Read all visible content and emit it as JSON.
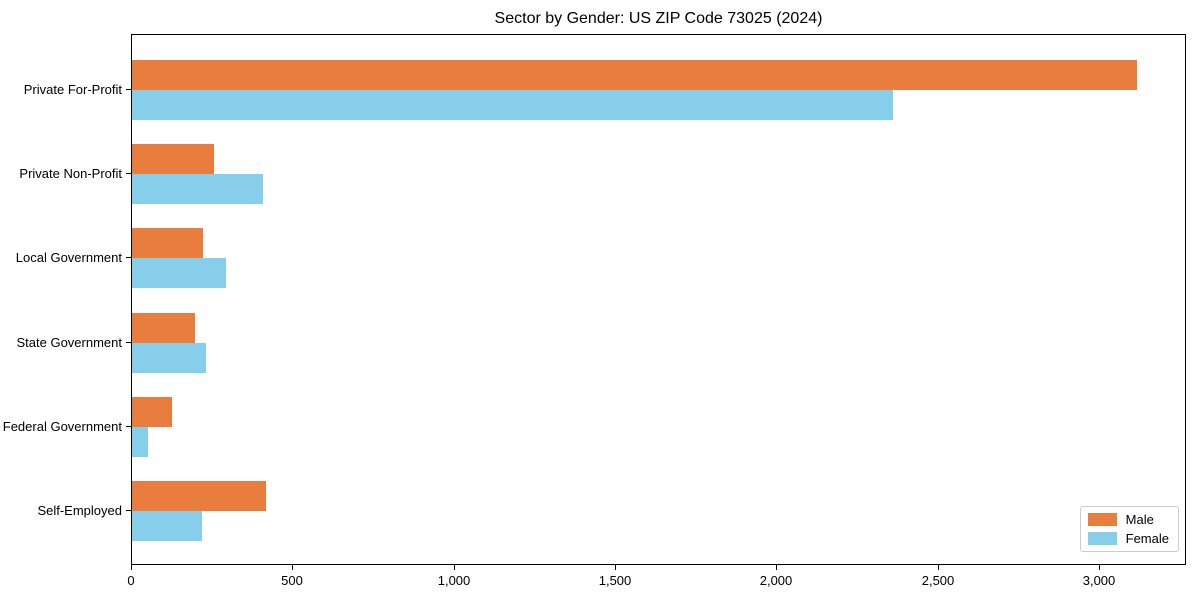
{
  "figure": {
    "background": "#ffffff"
  },
  "chart_data": {
    "type": "bar",
    "orientation": "horizontal",
    "title": "Sector by Gender: US ZIP Code 73025 (2024)",
    "categories": [
      "Private For-Profit",
      "Private Non-Profit",
      "Local Government",
      "State Government",
      "Federal Government",
      "Self-Employed"
    ],
    "series": [
      {
        "name": "Male",
        "color": "#e87d3e",
        "values": [
          3115,
          255,
          220,
          195,
          125,
          415
        ]
      },
      {
        "name": "Female",
        "color": "#87ceeb",
        "values": [
          2360,
          405,
          290,
          230,
          50,
          218
        ]
      }
    ],
    "xlabel": "",
    "ylabel": "",
    "xlim": [
      0,
      3270
    ],
    "xticks": [
      {
        "value": 0,
        "label": "0"
      },
      {
        "value": 500,
        "label": "500"
      },
      {
        "value": 1000,
        "label": "1,000"
      },
      {
        "value": 1500,
        "label": "1,500"
      },
      {
        "value": 2000,
        "label": "2,000"
      },
      {
        "value": 2500,
        "label": "2,500"
      },
      {
        "value": 3000,
        "label": "3,000"
      }
    ],
    "grid": false,
    "legend": {
      "position": "lower right",
      "entries": [
        "Male",
        "Female"
      ]
    }
  }
}
